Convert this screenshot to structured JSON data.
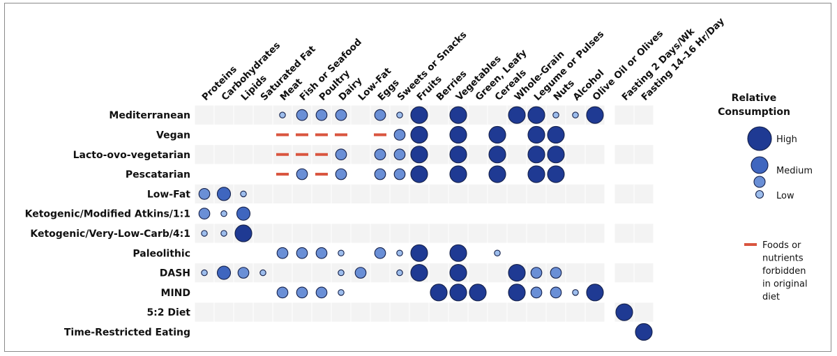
{
  "chart_data": {
    "type": "bubble-matrix",
    "rows": [
      "Mediterranean",
      "Vegan",
      "Lacto-ovo-vegetarian",
      "Pescatarian",
      "Low-Fat",
      "Ketogenic/Modified Atkins/1:1",
      "Ketogenic/Very-Low-Carb/4:1",
      "Paleolithic",
      "DASH",
      "MIND",
      "5:2 Diet",
      "Time-Restricted Eating"
    ],
    "columns": [
      "Proteins",
      "Carbohydrates",
      "Lipids",
      "Saturated Fat",
      "Meat",
      "Fish or Seafood",
      "Poultry",
      "Dairy",
      "Low-Fat",
      "Eggs",
      "Sweets or Snacks",
      "Fruits",
      "Berries",
      "Vegetables",
      "Green, Leafy",
      "Cereals",
      "Whole-Grain",
      "Legume or Pulses",
      "Nuts",
      "Alcohol",
      "Olive Oil or Olives",
      "Fasting 2 Days/Wk",
      "Fasting 14–16 Hr/Day"
    ],
    "values": [
      [
        0,
        0,
        0,
        0,
        1,
        2,
        2,
        2,
        0,
        2,
        1,
        4,
        0,
        4,
        0,
        0,
        4,
        4,
        1,
        1,
        4,
        0,
        0
      ],
      [
        0,
        0,
        0,
        0,
        -1,
        -1,
        -1,
        -1,
        0,
        -1,
        2,
        4,
        0,
        4,
        0,
        4,
        0,
        4,
        4,
        0,
        0,
        0,
        0
      ],
      [
        0,
        0,
        0,
        0,
        -1,
        -1,
        -1,
        2,
        0,
        2,
        2,
        4,
        0,
        4,
        0,
        4,
        0,
        4,
        4,
        0,
        0,
        0,
        0
      ],
      [
        0,
        0,
        0,
        0,
        -1,
        2,
        -1,
        2,
        0,
        2,
        2,
        4,
        0,
        4,
        0,
        4,
        0,
        4,
        4,
        0,
        0,
        0,
        0
      ],
      [
        2,
        3,
        1,
        0,
        0,
        0,
        0,
        0,
        0,
        0,
        0,
        0,
        0,
        0,
        0,
        0,
        0,
        0,
        0,
        0,
        0,
        0,
        0
      ],
      [
        2,
        1,
        3,
        0,
        0,
        0,
        0,
        0,
        0,
        0,
        0,
        0,
        0,
        0,
        0,
        0,
        0,
        0,
        0,
        0,
        0,
        0,
        0
      ],
      [
        1,
        1,
        4,
        0,
        0,
        0,
        0,
        0,
        0,
        0,
        0,
        0,
        0,
        0,
        0,
        0,
        0,
        0,
        0,
        0,
        0,
        0,
        0
      ],
      [
        0,
        0,
        0,
        0,
        2,
        2,
        2,
        1,
        0,
        2,
        1,
        4,
        0,
        4,
        0,
        1,
        0,
        0,
        0,
        0,
        0,
        0,
        0
      ],
      [
        1,
        3,
        2,
        1,
        0,
        0,
        0,
        1,
        2,
        0,
        1,
        4,
        0,
        4,
        0,
        0,
        4,
        2,
        2,
        0,
        0,
        0,
        0
      ],
      [
        0,
        0,
        0,
        0,
        2,
        2,
        2,
        1,
        0,
        0,
        0,
        0,
        4,
        4,
        4,
        0,
        4,
        2,
        2,
        1,
        4,
        0,
        0
      ],
      [
        0,
        0,
        0,
        0,
        0,
        0,
        0,
        0,
        0,
        0,
        0,
        0,
        0,
        0,
        0,
        0,
        0,
        0,
        0,
        0,
        0,
        4,
        0
      ],
      [
        0,
        0,
        0,
        0,
        0,
        0,
        0,
        0,
        0,
        0,
        0,
        0,
        0,
        0,
        0,
        0,
        0,
        0,
        0,
        0,
        0,
        0,
        4
      ]
    ],
    "value_scale": {
      "-1": "forbidden",
      "0": "none",
      "1": "low",
      "2": "low-medium",
      "3": "medium",
      "4": "high"
    },
    "legend": {
      "title": "Relative Consumption",
      "levels": [
        "High",
        "Medium",
        "Low"
      ],
      "forbidden_label": "Foods or nutrients forbidden in original diet",
      "placement": "right"
    },
    "colors": {
      "high": "#1f3a93",
      "medium": "#3f66bf",
      "low_medium": "#6a8fd6",
      "low": "#9dbdec",
      "outline": "#14204a",
      "forbidden": "#d9553f",
      "cell_light": "#f3f3f3"
    }
  }
}
